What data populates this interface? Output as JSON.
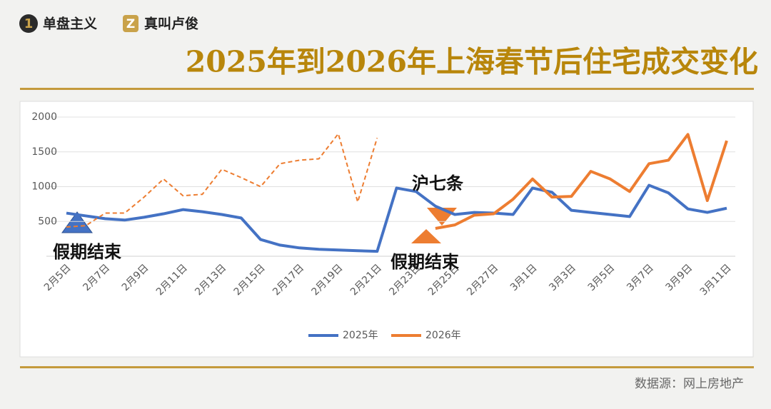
{
  "header": {
    "brands": [
      "单盘主义",
      "真叫卢俊"
    ],
    "title": "2025年到2026年上海春节后住宅成交变化"
  },
  "chart_data": {
    "type": "line",
    "categories": [
      "2月5日",
      null,
      "2月7日",
      null,
      "2月9日",
      null,
      "2月11日",
      null,
      "2月13日",
      null,
      "2月15日",
      null,
      "2月17日",
      null,
      "2月19日",
      null,
      "2月21日",
      null,
      "2月23日",
      null,
      "2月25日",
      null,
      "2月27日",
      null,
      "3月1日",
      null,
      "3月3日",
      null,
      "3月5日",
      null,
      "3月7日",
      null,
      "3月9日",
      null,
      "3月11日"
    ],
    "series": [
      {
        "name": "2025年",
        "color": "#4472c4",
        "values": [
          620,
          580,
          540,
          520,
          560,
          610,
          670,
          640,
          600,
          550,
          240,
          160,
          120,
          100,
          90,
          80,
          70,
          980,
          930,
          720,
          600,
          630,
          620,
          600,
          980,
          920,
          660,
          630,
          600,
          570,
          1020,
          910,
          680,
          630,
          690
        ]
      },
      {
        "name": "2026年",
        "color": "#ed7d31",
        "dashed_range": [
          0,
          16
        ],
        "values": [
          420,
          440,
          620,
          620,
          850,
          1110,
          870,
          890,
          1250,
          1130,
          1000,
          1330,
          1380,
          1400,
          1760,
          780,
          1700,
          null,
          null,
          400,
          450,
          590,
          610,
          820,
          1110,
          850,
          860,
          1220,
          1110,
          930,
          1330,
          1380,
          1750,
          800,
          1660
        ]
      }
    ],
    "ylim": [
      0,
      2000
    ],
    "yticks": [
      500,
      1000,
      1500,
      2000
    ],
    "grid": true,
    "legend": "bottom",
    "annotations": [
      "沪七条",
      "假期结束",
      "假期结束"
    ]
  },
  "footer": {
    "source": "数据源：网上房地产"
  }
}
